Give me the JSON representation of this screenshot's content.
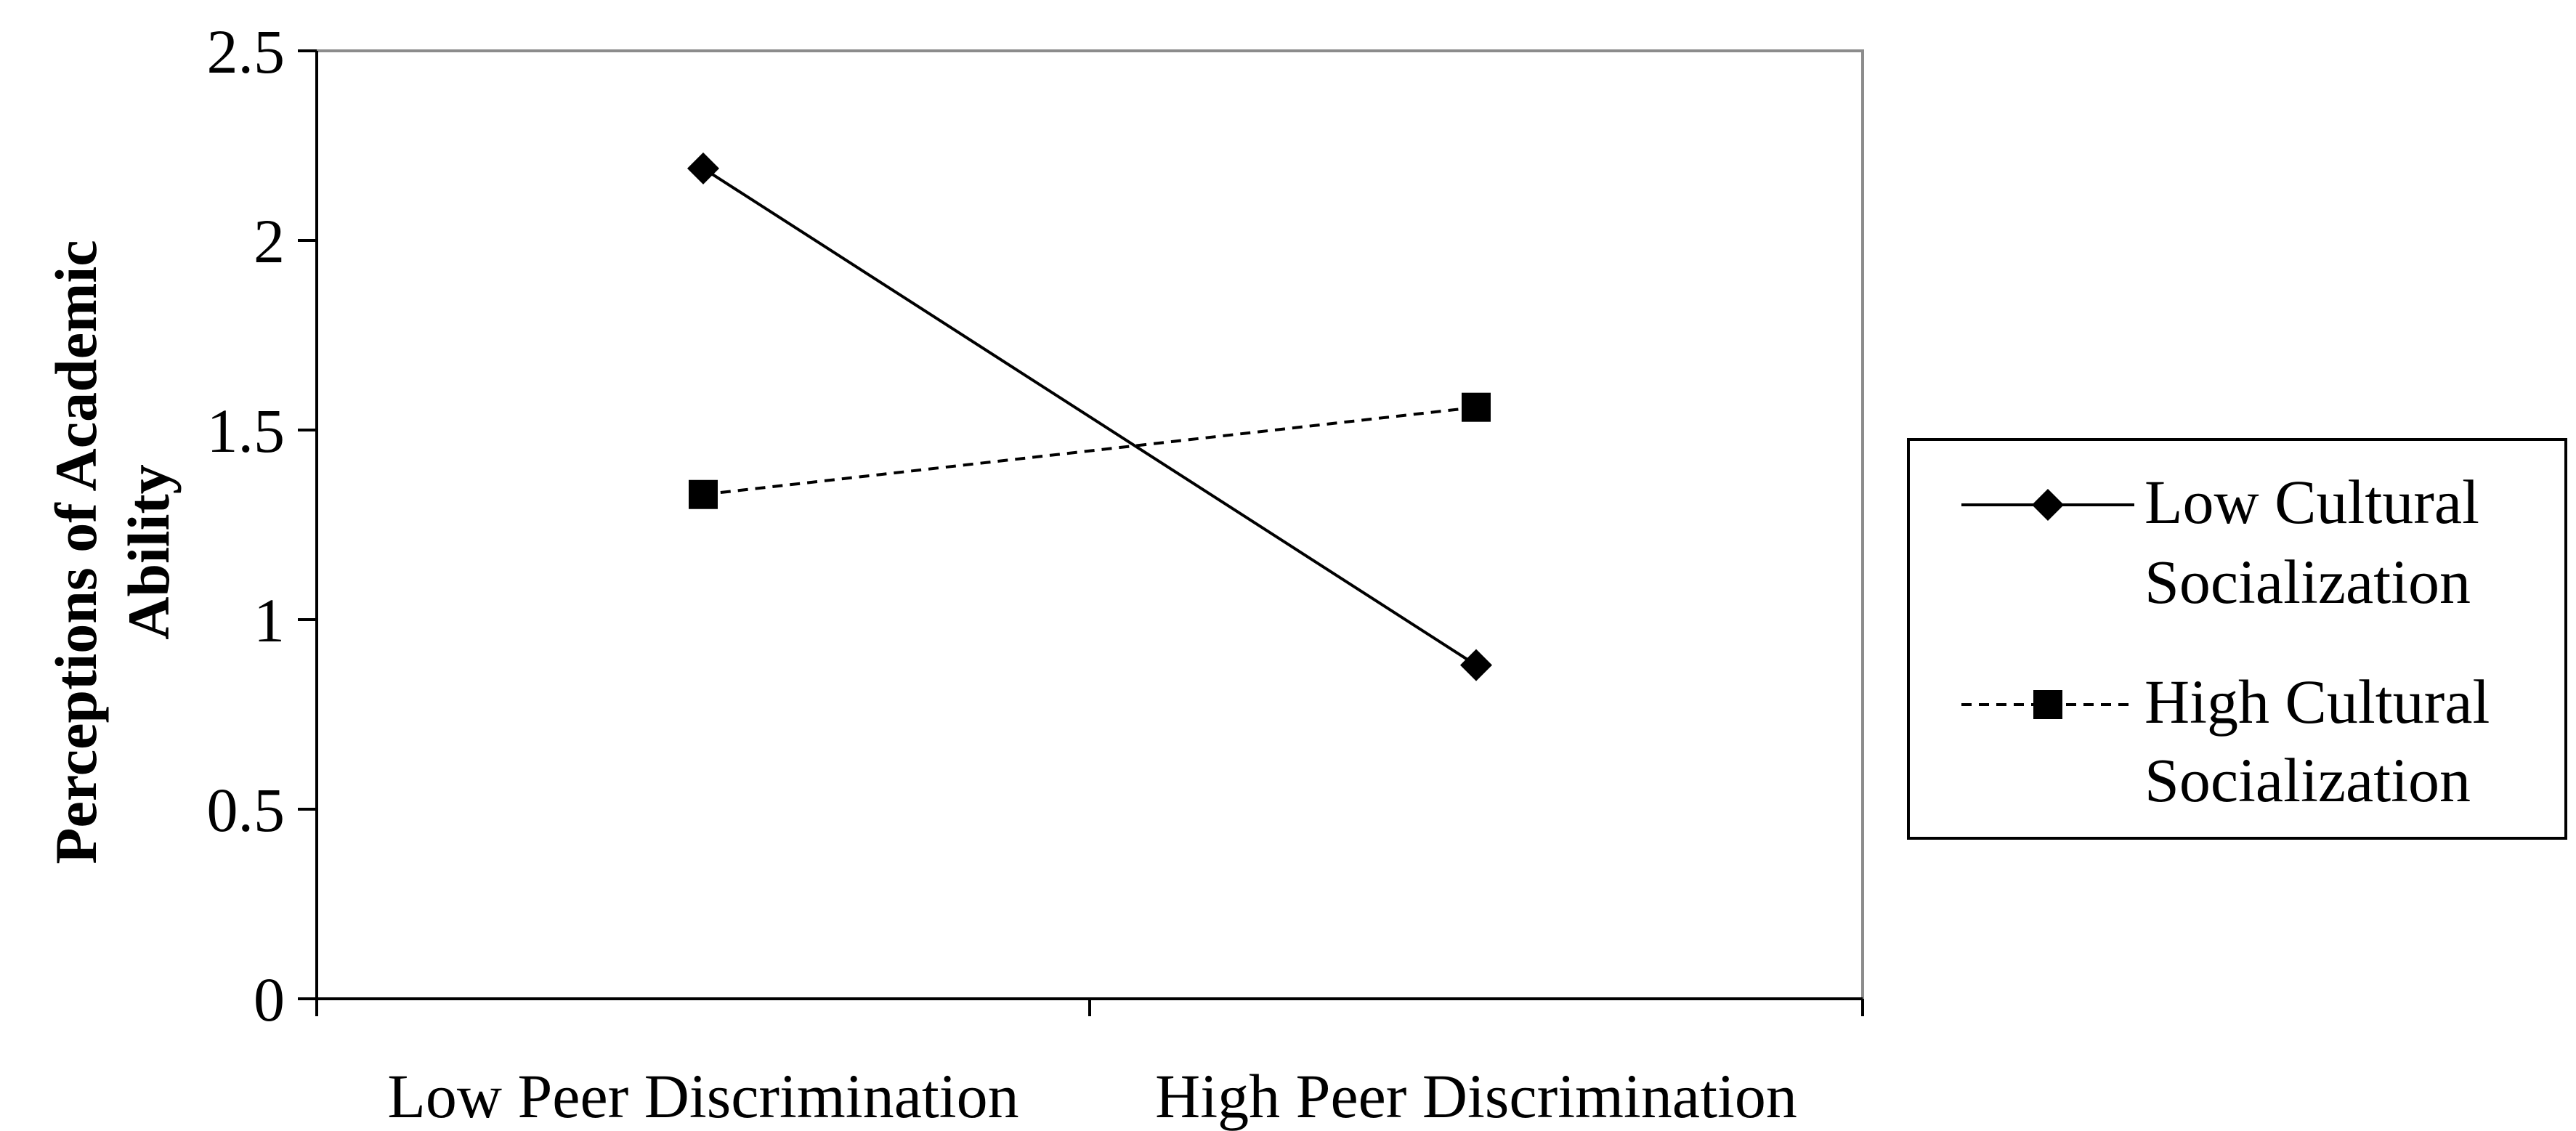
{
  "chart_data": {
    "type": "line",
    "title": "",
    "xlabel": "",
    "ylabel": "Perceptions of Academic Ability",
    "ylabel_lines": [
      "Perceptions of Academic",
      "Ability"
    ],
    "categories": [
      "Low Peer Discrimination",
      "High Peer Discrimination"
    ],
    "ylim": [
      0,
      2.5
    ],
    "yticks": [
      "0",
      "0.5",
      "1",
      "1.5",
      "2",
      "2.5"
    ],
    "grid": false,
    "legend_position": "right",
    "series": [
      {
        "name": "Low Cultural Socialization",
        "name_lines": [
          "Low Cultural",
          "Socialization"
        ],
        "values": [
          2.19,
          0.88
        ],
        "marker": "diamond",
        "line_style": "solid",
        "color": "#000000"
      },
      {
        "name": "High Cultural Socialization",
        "name_lines": [
          "High Cultural",
          "Socialization"
        ],
        "values": [
          1.33,
          1.56
        ],
        "marker": "square",
        "line_style": "dashed",
        "color": "#000000"
      }
    ]
  }
}
